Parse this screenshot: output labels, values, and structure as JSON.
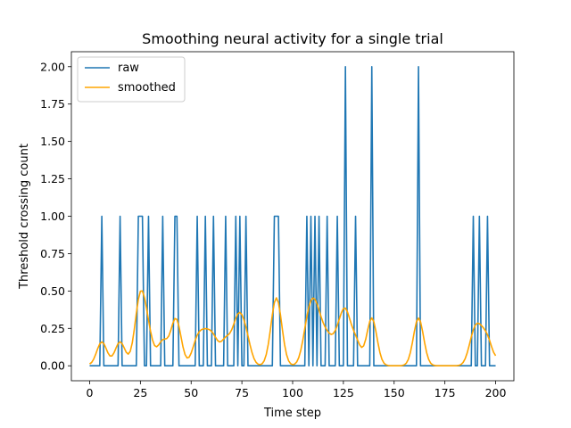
{
  "chart_data": {
    "type": "line",
    "title": "Smoothing neural activity for a single trial",
    "xlabel": "Time step",
    "ylabel": "Threshold crossing count",
    "xlim": [
      -9,
      209
    ],
    "ylim": [
      -0.1,
      2.1
    ],
    "xticks": [
      0,
      25,
      50,
      75,
      100,
      125,
      150,
      175,
      200
    ],
    "yticks": [
      0.0,
      0.25,
      0.5,
      0.75,
      1.0,
      1.25,
      1.5,
      1.75,
      2.0
    ],
    "ytick_labels": [
      "0.00",
      "0.25",
      "0.50",
      "0.75",
      "1.00",
      "1.25",
      "1.50",
      "1.75",
      "2.00"
    ],
    "grid": false,
    "legend_position": "upper-left",
    "colors": {
      "raw": "#1f77b4",
      "smoothed": "#ffa500"
    },
    "x": [
      0,
      200
    ],
    "raw_events": [
      [
        6,
        1
      ],
      [
        15,
        1
      ],
      [
        24,
        1
      ],
      [
        25,
        1
      ],
      [
        26,
        1
      ],
      [
        29,
        1
      ],
      [
        36,
        1
      ],
      [
        42,
        1
      ],
      [
        43,
        1
      ],
      [
        53,
        1
      ],
      [
        57,
        1
      ],
      [
        61,
        1
      ],
      [
        67,
        1
      ],
      [
        72,
        1
      ],
      [
        74,
        1
      ],
      [
        77,
        1
      ],
      [
        91,
        1
      ],
      [
        92,
        1
      ],
      [
        93,
        1
      ],
      [
        107,
        1
      ],
      [
        109,
        1
      ],
      [
        111,
        1
      ],
      [
        113,
        1
      ],
      [
        117,
        1
      ],
      [
        122,
        1
      ],
      [
        126,
        2
      ],
      [
        131,
        1
      ],
      [
        139,
        2
      ],
      [
        162,
        2
      ],
      [
        189,
        1
      ],
      [
        192,
        1
      ],
      [
        196,
        1
      ]
    ],
    "series": [
      {
        "name": "raw"
      },
      {
        "name": "smoothed",
        "kernel_sigma": 2.5
      }
    ]
  }
}
